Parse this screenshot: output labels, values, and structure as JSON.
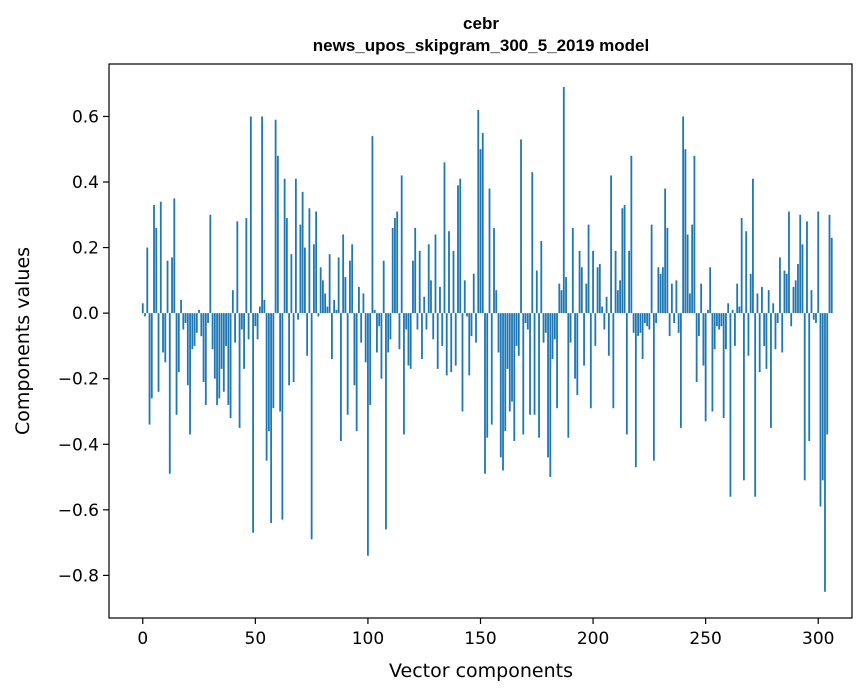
{
  "chart_data": {
    "type": "bar",
    "title": "cebr",
    "subtitle": "news_upos_skipgram_300_5_2019 model",
    "xlabel": "Vector components",
    "ylabel": "Components values",
    "xlim": [
      -15,
      315
    ],
    "ylim": [
      -0.93,
      0.76
    ],
    "xticks": [
      0,
      50,
      100,
      150,
      200,
      250,
      300
    ],
    "yticks": [
      -0.8,
      -0.6,
      -0.4,
      -0.2,
      0.0,
      0.2,
      0.4,
      0.6
    ],
    "ytick_labels": [
      "−0.8",
      "−0.6",
      "−0.4",
      "−0.2",
      "0.0",
      "0.2",
      "0.4",
      "0.6"
    ],
    "bar_color": "#1f77b4",
    "grid": false,
    "x_start": 0,
    "values": [
      0.03,
      -0.01,
      0.2,
      -0.34,
      -0.26,
      0.33,
      0.26,
      -0.24,
      0.34,
      -0.12,
      -0.15,
      0.16,
      -0.49,
      0.17,
      0.35,
      -0.31,
      -0.18,
      0.04,
      -0.05,
      -0.03,
      -0.22,
      -0.37,
      -0.11,
      -0.1,
      -0.06,
      0.01,
      -0.07,
      -0.21,
      -0.28,
      -0.03,
      0.3,
      -0.11,
      -0.2,
      -0.28,
      -0.26,
      -0.17,
      -0.24,
      -0.1,
      -0.28,
      -0.32,
      0.07,
      -0.09,
      0.28,
      -0.35,
      -0.05,
      -0.17,
      0.29,
      -0.08,
      0.6,
      -0.67,
      -0.04,
      -0.08,
      0.02,
      0.6,
      0.04,
      -0.45,
      -0.36,
      -0.64,
      -0.29,
      0.59,
      0.48,
      -0.3,
      -0.63,
      0.41,
      0.29,
      -0.22,
      0.18,
      -0.21,
      0.41,
      -0.02,
      0.27,
      0.37,
      0.2,
      -0.13,
      0.32,
      -0.69,
      0.21,
      0.31,
      -0.01,
      0.14,
      0.1,
      0.06,
      0.02,
      0.18,
      -0.14,
      0.04,
      0.01,
      0.17,
      -0.39,
      0.24,
      0.11,
      -0.31,
      0.16,
      0.21,
      -0.22,
      -0.36,
      0.08,
      -0.09,
      0.06,
      -0.15,
      -0.74,
      -0.28,
      0.54,
      0.01,
      -0.12,
      -0.04,
      -0.2,
      0.16,
      -0.66,
      -0.12,
      -0.08,
      0.26,
      0.29,
      0.31,
      -0.11,
      0.42,
      -0.37,
      -0.05,
      -0.16,
      -0.17,
      0.16,
      0.26,
      -0.05,
      0.19,
      -0.14,
      0.05,
      -0.05,
      0.21,
      0.1,
      -0.08,
      0.24,
      -0.17,
      0.08,
      -0.1,
      0.46,
      -0.19,
      0.25,
      -0.18,
      0.19,
      -0.16,
      0.39,
      0.41,
      -0.3,
      0.1,
      -0.01,
      -0.19,
      -0.07,
      0.12,
      -0.09,
      0.62,
      0.5,
      0.55,
      -0.49,
      -0.38,
      0.38,
      -0.34,
      0.26,
      0.07,
      -0.12,
      -0.44,
      -0.48,
      -0.36,
      -0.17,
      -0.3,
      -0.27,
      -0.39,
      -0.1,
      -0.13,
      0.53,
      -0.37,
      -0.03,
      -0.05,
      -0.31,
      0.43,
      -0.31,
      0.13,
      -0.38,
      0.22,
      -0.09,
      -0.06,
      -0.44,
      -0.5,
      -0.14,
      -0.08,
      -0.29,
      0.09,
      0.07,
      0.69,
      0.11,
      -0.38,
      -0.09,
      0.26,
      -0.2,
      -0.25,
      0.19,
      0.14,
      -0.16,
      0.09,
      0.27,
      -0.29,
      0.19,
      -0.1,
      0.14,
      0.15,
      0.02,
      -0.05,
      0.05,
      -0.13,
      0.42,
      -0.29,
      0.19,
      0.07,
      0.1,
      0.32,
      0.33,
      -0.37,
      0.19,
      0.48,
      -0.06,
      -0.47,
      -0.07,
      -0.06,
      -0.14,
      -0.03,
      -0.04,
      -0.05,
      0.27,
      -0.45,
      -0.03,
      0.14,
      0.12,
      0.14,
      0.38,
      0.26,
      -0.07,
      0.09,
      -0.03,
      0.1,
      -0.06,
      -0.35,
      0.6,
      0.5,
      0.24,
      0.06,
      0.27,
      0.48,
      -0.21,
      -0.07,
      0.09,
      -0.16,
      -0.33,
      0.01,
      0.14,
      -0.3,
      -0.11,
      -0.04,
      -0.05,
      -0.04,
      -0.32,
      -0.11,
      0.03,
      -0.56,
      0.01,
      -0.1,
      0.09,
      0.02,
      0.29,
      -0.51,
      0.25,
      -0.13,
      0.12,
      0.41,
      -0.56,
      0.06,
      -0.18,
      0.08,
      -0.1,
      -0.17,
      0.07,
      -0.35,
      0.03,
      -0.11,
      -0.03,
      0.17,
      -0.12,
      0.13,
      0.12,
      0.31,
      -0.04,
      0.08,
      0.1,
      0.15,
      0.3,
      0.21,
      -0.51,
      0.28,
      -0.39,
      0.07,
      -0.02,
      -0.03,
      0.31,
      -0.59,
      -0.51,
      -0.85,
      -0.37,
      0.3,
      0.23
    ]
  }
}
